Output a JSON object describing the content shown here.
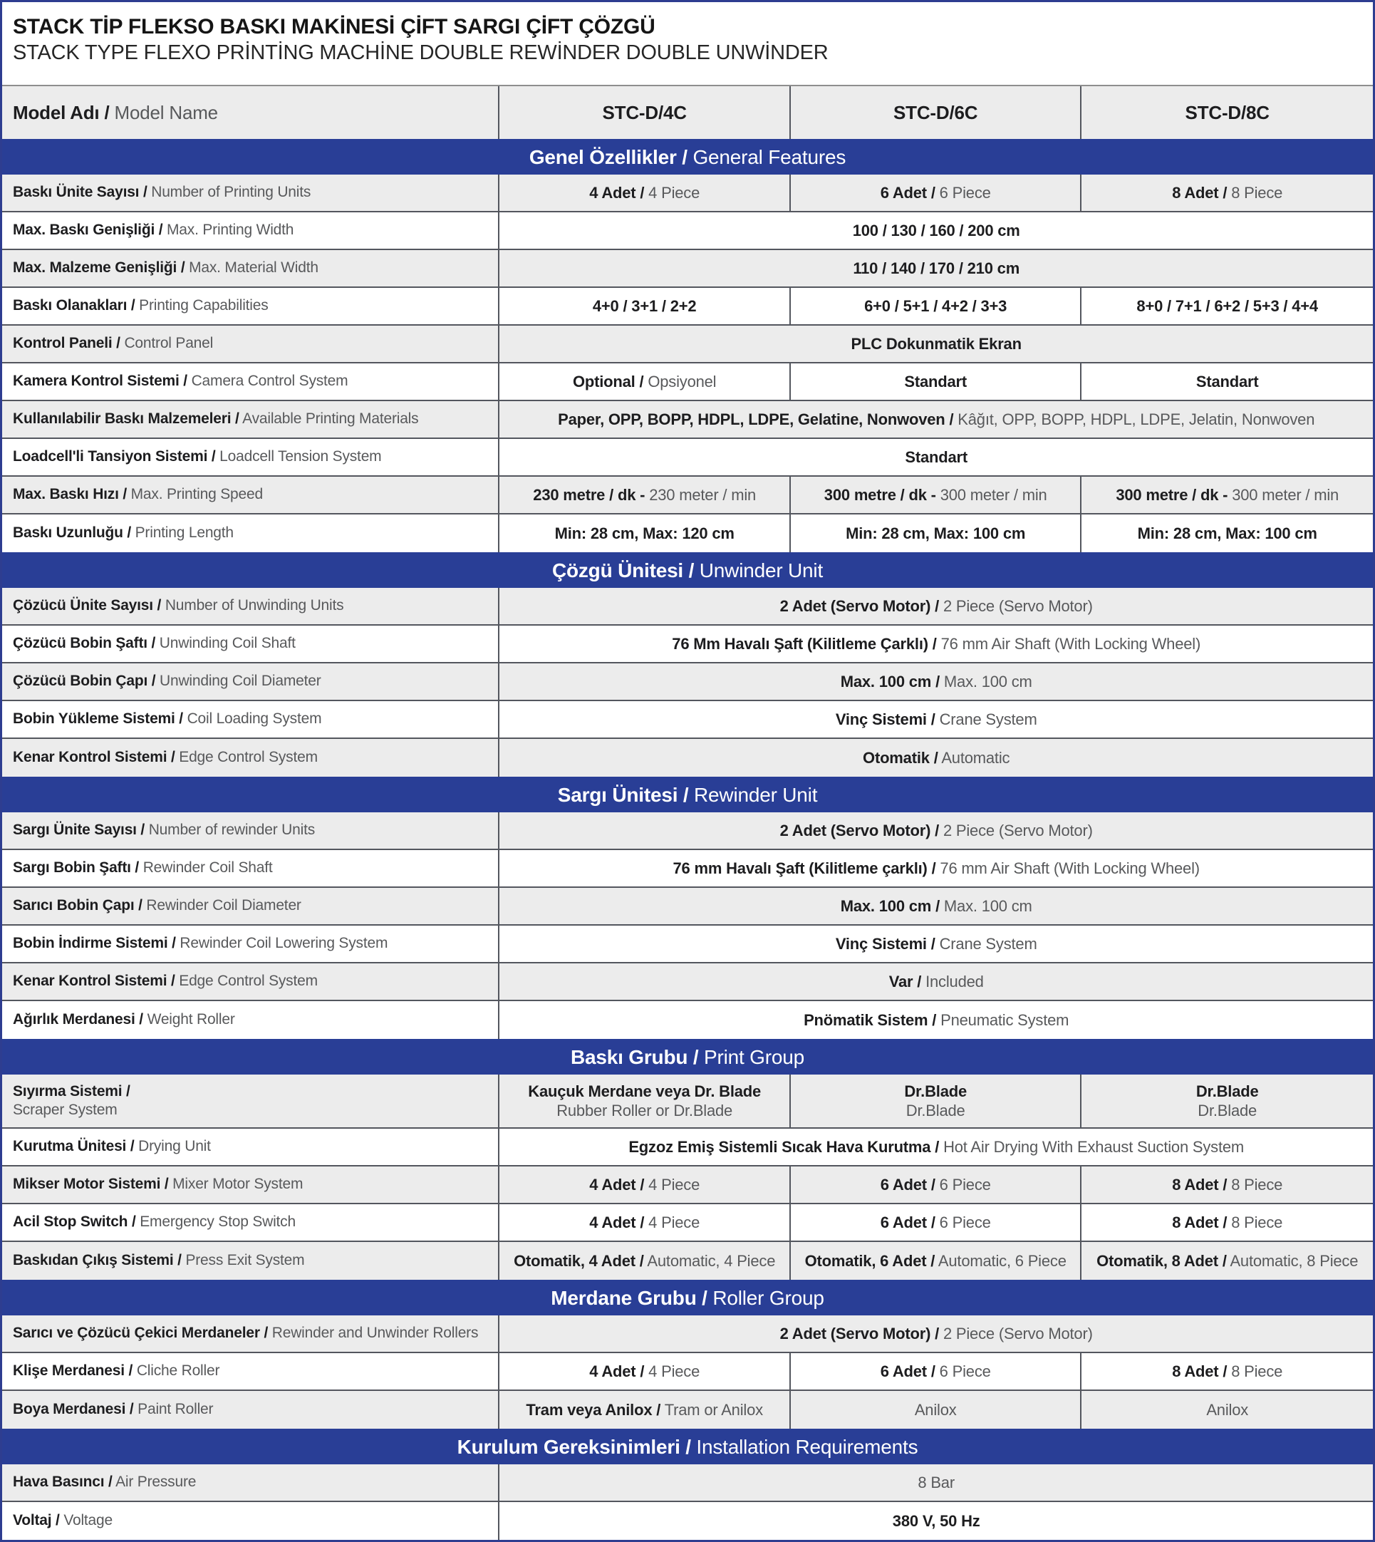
{
  "colors": {
    "accent_blue": "#293E96",
    "band_text": "#FFFFFF",
    "row_alt_gray": "#ECECEC",
    "row_white": "#FFFFFF",
    "cell_border": "#53565E",
    "outer_border": "#2E3D90",
    "title_divider": "#8E8E8E",
    "text_bold": "#1D1D1F",
    "text_regular": "#58595B"
  },
  "title": {
    "tr": "STACK TİP FLEKSO BASKI MAKİNESİ ÇİFT SARGI ÇİFT ÇÖZGÜ",
    "en": "STACK TYPE FLEXO PRİNTİNG MACHİNE DOUBLE REWİNDER DOUBLE UNWİNDER"
  },
  "header": {
    "label": {
      "tr": "Model Adı /",
      "en": "Model Name"
    },
    "models": [
      "STC-D/4C",
      "STC-D/6C",
      "STC-D/8C"
    ]
  },
  "sections": [
    {
      "band": {
        "tr": "Genel Özellikler /",
        "en": "General Features"
      },
      "rows": [
        {
          "label": {
            "tr": "Baskı Ünite Sayısı /",
            "en": "Number of Printing Units"
          },
          "cells": [
            {
              "b": "4 Adet /",
              "r": "4 Piece"
            },
            {
              "b": "6 Adet /",
              "r": "6 Piece"
            },
            {
              "b": "8 Adet /",
              "r": "8 Piece"
            }
          ]
        },
        {
          "label": {
            "tr": "Max. Baskı Genişliği /",
            "en": "Max. Printing Width"
          },
          "span": {
            "b": "100 / 130 / 160 / 200 cm",
            "r": ""
          }
        },
        {
          "label": {
            "tr": "Max. Malzeme Genişliği /",
            "en": "Max. Material Width"
          },
          "span": {
            "b": "110 / 140 / 170 / 210 cm",
            "r": ""
          }
        },
        {
          "label": {
            "tr": "Baskı Olanakları /",
            "en": "Printing Capabilities"
          },
          "cells": [
            {
              "b": "4+0 / 3+1 / 2+2",
              "r": ""
            },
            {
              "b": "6+0 / 5+1 / 4+2 / 3+3",
              "r": ""
            },
            {
              "b": "8+0 / 7+1 / 6+2 / 5+3 / 4+4",
              "r": ""
            }
          ]
        },
        {
          "label": {
            "tr": "Kontrol Paneli /",
            "en": "Control Panel"
          },
          "span": {
            "b": "PLC Dokunmatik Ekran",
            "r": ""
          }
        },
        {
          "label": {
            "tr": "Kamera Kontrol Sistemi /",
            "en": "Camera Control System"
          },
          "cells": [
            {
              "b": "Optional /",
              "r": "Opsiyonel"
            },
            {
              "b": "Standart",
              "r": ""
            },
            {
              "b": "Standart",
              "r": ""
            }
          ]
        },
        {
          "label": {
            "tr": "Kullanılabilir Baskı Malzemeleri /",
            "en": "Available Printing Materials"
          },
          "span": {
            "b": "Paper, OPP, BOPP, HDPL, LDPE, Gelatine, Nonwoven /",
            "r": "Kâğıt, OPP, BOPP, HDPL, LDPE, Jelatin, Nonwoven"
          }
        },
        {
          "label": {
            "tr": "Loadcell'li Tansiyon Sistemi /",
            "en": "Loadcell Tension System"
          },
          "span": {
            "b": "Standart",
            "r": ""
          }
        },
        {
          "label": {
            "tr": "Max. Baskı Hızı  /",
            "en": "Max. Printing Speed"
          },
          "cells": [
            {
              "b": "230 metre / dk -",
              "r": "230 meter / min"
            },
            {
              "b": "300 metre / dk -",
              "r": "300 meter / min"
            },
            {
              "b": "300 metre / dk -",
              "r": "300 meter / min"
            }
          ]
        },
        {
          "label": {
            "tr": "Baskı Uzunluğu /",
            "en": "Printing Length"
          },
          "cells": [
            {
              "b": "Min: 28 cm, Max: 120 cm",
              "r": ""
            },
            {
              "b": "Min: 28 cm, Max: 100 cm",
              "r": ""
            },
            {
              "b": "Min: 28 cm, Max: 100 cm",
              "r": ""
            }
          ]
        }
      ]
    },
    {
      "band": {
        "tr": "Çözgü Ünitesi /",
        "en": "Unwinder Unit"
      },
      "rows": [
        {
          "label": {
            "tr": "Çözücü Ünite Sayısı /",
            "en": "Number of Unwinding Units"
          },
          "span": {
            "b": "2 Adet (Servo Motor) /",
            "r": "2 Piece (Servo Motor)"
          }
        },
        {
          "label": {
            "tr": "Çözücü Bobin Şaftı /",
            "en": "Unwinding Coil Shaft"
          },
          "span": {
            "b": "76 Mm Havalı Şaft (Kilitleme Çarklı) /",
            "r": "76 mm Air Shaft (With Locking Wheel)"
          }
        },
        {
          "label": {
            "tr": "Çözücü Bobin Çapı /",
            "en": "Unwinding Coil Diameter"
          },
          "span": {
            "b": "Max. 100 cm /",
            "r": "Max. 100 cm"
          }
        },
        {
          "label": {
            "tr": "Bobin Yükleme Sistemi /",
            "en": "Coil Loading System"
          },
          "span": {
            "b": "Vinç Sistemi /",
            "r": "Crane System"
          }
        },
        {
          "label": {
            "tr": "Kenar Kontrol Sistemi /",
            "en": "Edge Control System"
          },
          "span": {
            "b": "Otomatik /",
            "r": "Automatic"
          }
        }
      ]
    },
    {
      "band": {
        "tr": "Sargı Ünitesi /",
        "en": "Rewinder Unit"
      },
      "rows": [
        {
          "label": {
            "tr": "Sargı Ünite Sayısı /",
            "en": "Number of rewinder Units"
          },
          "span": {
            "b": "2 Adet (Servo Motor) /",
            "r": "2 Piece (Servo Motor)"
          }
        },
        {
          "label": {
            "tr": "Sargı Bobin Şaftı /",
            "en": "Rewinder Coil Shaft"
          },
          "span": {
            "b": "76 mm Havalı Şaft (Kilitleme çarklı) /",
            "r": "76 mm Air Shaft (With Locking Wheel)"
          }
        },
        {
          "label": {
            "tr": "Sarıcı Bobin Çapı /",
            "en": "Rewinder Coil Diameter"
          },
          "span": {
            "b": "Max. 100 cm /",
            "r": "Max. 100 cm"
          }
        },
        {
          "label": {
            "tr": "Bobin İndirme Sistemi /",
            "en": "Rewinder Coil Lowering System"
          },
          "span": {
            "b": "Vinç Sistemi /",
            "r": "Crane System"
          }
        },
        {
          "label": {
            "tr": "Kenar Kontrol Sistemi /",
            "en": "Edge Control System"
          },
          "span": {
            "b": "Var /",
            "r": "Included"
          }
        },
        {
          "label": {
            "tr": "Ağırlık Merdanesi /",
            "en": "Weight Roller"
          },
          "span": {
            "b": "Pnömatik Sistem /",
            "r": "Pneumatic System"
          }
        }
      ]
    },
    {
      "band": {
        "tr": "Baskı Grubu /",
        "en": "Print Group"
      },
      "rows": [
        {
          "label": {
            "tr": "Sıyırma Sistemi /",
            "en": "Scraper System"
          },
          "cells": [
            {
              "b": "Kauçuk Merdane veya Dr. Blade",
              "r": "Rubber Roller or Dr.Blade"
            },
            {
              "b": "Dr.Blade",
              "r": "Dr.Blade"
            },
            {
              "b": "Dr.Blade",
              "r": "Dr.Blade"
            }
          ]
        },
        {
          "label": {
            "tr": "Kurutma Ünitesi /",
            "en": "Drying Unit"
          },
          "span": {
            "b": "Egzoz Emiş Sistemli Sıcak Hava Kurutma /",
            "r": "Hot Air Drying With Exhaust Suction System"
          }
        },
        {
          "label": {
            "tr": "Mikser Motor Sistemi /",
            "en": "Mixer Motor System"
          },
          "cells": [
            {
              "b": "4 Adet /",
              "r": "4 Piece"
            },
            {
              "b": "6 Adet /",
              "r": "6 Piece"
            },
            {
              "b": "8 Adet /",
              "r": "8 Piece"
            }
          ]
        },
        {
          "label": {
            "tr": "Acil Stop Switch /",
            "en": "Emergency Stop Switch"
          },
          "cells": [
            {
              "b": "4 Adet /",
              "r": "4 Piece"
            },
            {
              "b": "6 Adet /",
              "r": "6 Piece"
            },
            {
              "b": "8 Adet /",
              "r": "8 Piece"
            }
          ]
        },
        {
          "label": {
            "tr": "Baskıdan Çıkış Sistemi /",
            "en": "Press Exit System"
          },
          "cells": [
            {
              "b": "Otomatik, 4 Adet /",
              "r": "Automatic, 4 Piece"
            },
            {
              "b": "Otomatik, 6 Adet /",
              "r": "Automatic, 6 Piece"
            },
            {
              "b": "Otomatik, 8 Adet /",
              "r": "Automatic, 8 Piece"
            }
          ]
        }
      ]
    },
    {
      "band": {
        "tr": "Merdane Grubu /",
        "en": "Roller Group"
      },
      "rows": [
        {
          "label": {
            "tr": "Sarıcı ve Çözücü Çekici Merdaneler /",
            "en": "Rewinder and Unwinder Rollers"
          },
          "span": {
            "b": "2 Adet (Servo Motor) /",
            "r": "2 Piece (Servo Motor)"
          }
        },
        {
          "label": {
            "tr": "Klişe Merdanesi /",
            "en": "Cliche Roller"
          },
          "cells": [
            {
              "b": "4 Adet /",
              "r": "4 Piece"
            },
            {
              "b": "6 Adet /",
              "r": "6 Piece"
            },
            {
              "b": "8 Adet /",
              "r": "8 Piece"
            }
          ]
        },
        {
          "label": {
            "tr": "Boya Merdanesi /",
            "en": "Paint Roller"
          },
          "cells": [
            {
              "b": "Tram veya Anilox /",
              "r": "Tram or Anilox"
            },
            {
              "b": "",
              "r": "Anilox"
            },
            {
              "b": "",
              "r": "Anilox"
            }
          ]
        }
      ]
    },
    {
      "band": {
        "tr": "Kurulum Gereksinimleri /",
        "en": "Installation Requirements"
      },
      "rows": [
        {
          "label": {
            "tr": "Hava Basıncı /",
            "en": "Air Pressure"
          },
          "span": {
            "b": "",
            "r": "8 Bar"
          }
        },
        {
          "label": {
            "tr": "Voltaj /",
            "en": "Voltage"
          },
          "span": {
            "b": "380 V, 50 Hz",
            "r": ""
          }
        }
      ]
    }
  ]
}
